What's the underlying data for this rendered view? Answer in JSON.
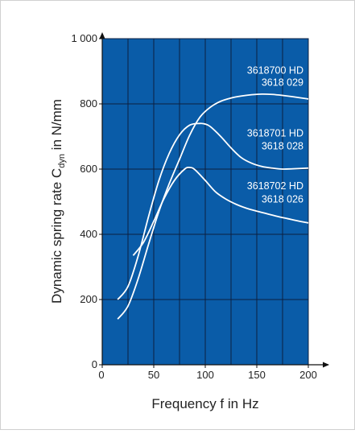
{
  "chart_data": {
    "type": "line",
    "title": "",
    "xlabel": "Frequency f in Hz",
    "ylabel_main": "Dynamic spring rate C",
    "ylabel_sub": "dyn",
    "ylabel_unit": " in N/mm",
    "xlim": [
      0,
      200
    ],
    "ylim": [
      0,
      1000
    ],
    "x_ticks": [
      0,
      50,
      100,
      150,
      200
    ],
    "x_tick_labels": [
      "0",
      "50",
      "100",
      "150",
      "200"
    ],
    "y_ticks": [
      0,
      200,
      400,
      600,
      800,
      1000
    ],
    "y_tick_labels": [
      "0",
      "200",
      "400",
      "600",
      "800",
      "1 000"
    ],
    "x_grid_step": 25,
    "y_grid_step": 200,
    "grid": true,
    "plot_background": "#0a5ca8",
    "grid_color": "#0c1f40",
    "curve_color": "#ffffff",
    "series": [
      {
        "labels": [
          "3618700 HD",
          "3618 029"
        ],
        "label_at": [
          200,
          893,
          855
        ],
        "x": [
          15,
          25,
          35,
          45,
          55,
          65,
          75,
          85,
          95,
          105,
          115,
          125,
          135,
          145,
          155,
          165,
          175,
          185,
          200
        ],
        "y": [
          140,
          180,
          265,
          370,
          470,
          555,
          630,
          705,
          760,
          790,
          808,
          818,
          824,
          828,
          830,
          829,
          826,
          822,
          815
        ]
      },
      {
        "labels": [
          "3618701 HD",
          "3618 028"
        ],
        "label_at": [
          200,
          700,
          660
        ],
        "x": [
          15,
          25,
          35,
          45,
          55,
          65,
          75,
          85,
          95,
          100,
          105,
          115,
          125,
          135,
          145,
          155,
          165,
          175,
          185,
          200
        ],
        "y": [
          200,
          240,
          335,
          455,
          565,
          648,
          705,
          735,
          740,
          738,
          730,
          700,
          665,
          635,
          618,
          608,
          603,
          600,
          601,
          603
        ]
      },
      {
        "labels": [
          "3618702 HD",
          "3618 026"
        ],
        "label_at": [
          200,
          538,
          498
        ],
        "x": [
          30,
          40,
          50,
          60,
          70,
          80,
          85,
          90,
          100,
          110,
          120,
          130,
          140,
          150,
          160,
          170,
          180,
          190,
          200
        ],
        "y": [
          335,
          375,
          440,
          510,
          565,
          600,
          605,
          598,
          565,
          530,
          508,
          492,
          480,
          471,
          463,
          455,
          448,
          441,
          435
        ]
      }
    ]
  }
}
